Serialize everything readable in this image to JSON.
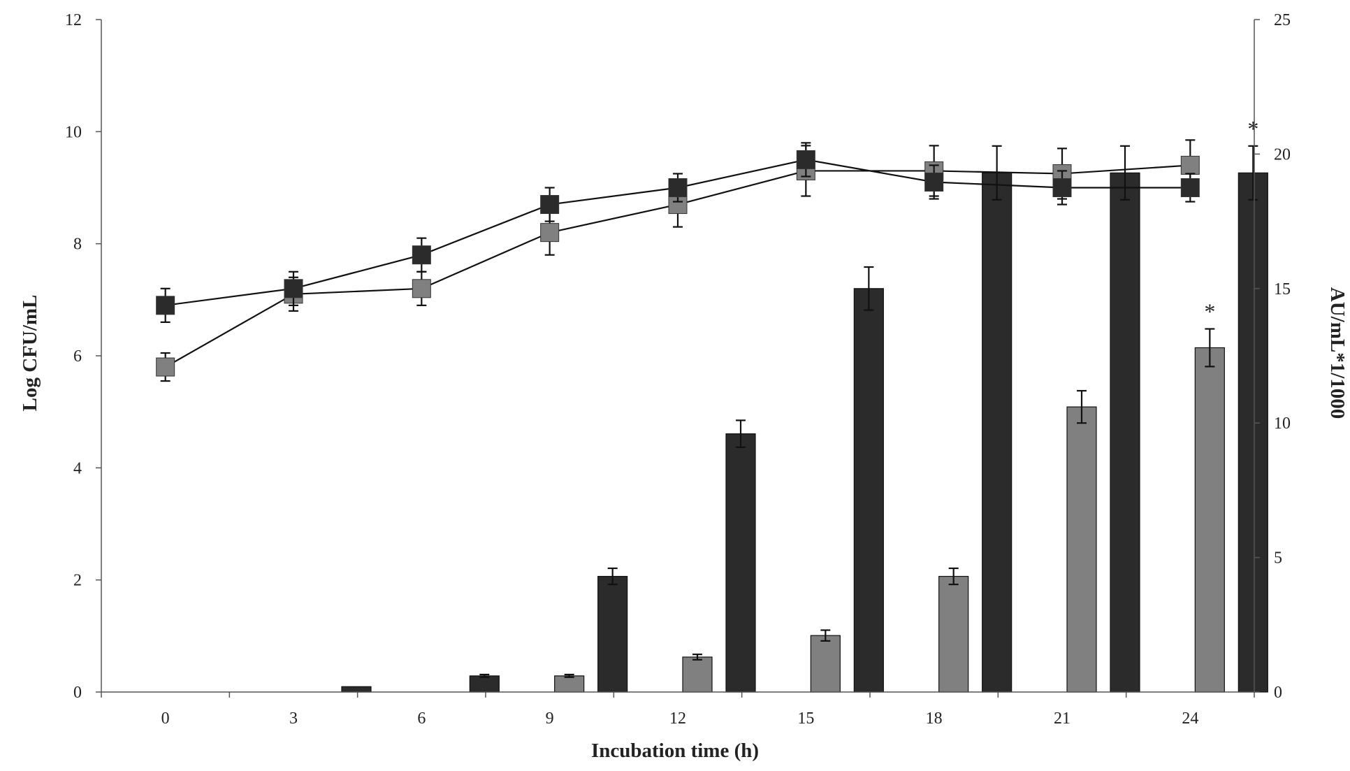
{
  "chart_data": {
    "type": "bar",
    "title": "",
    "xlabel": "Incubation   time (h)",
    "ylabel_left": "Log CFU/mL",
    "ylabel_right": "AU/mL*1/1000",
    "categories": [
      "0",
      "3",
      "6",
      "9",
      "12",
      "15",
      "18",
      "21",
      "24"
    ],
    "ylim_left": [
      0,
      12
    ],
    "yticks_left": [
      "0",
      "2",
      "4",
      "6",
      "8",
      "10",
      "12"
    ],
    "ylim_right": [
      0,
      25
    ],
    "yticks_right": [
      "0",
      "5",
      "10",
      "15",
      "20",
      "25"
    ],
    "grid": false,
    "legend": "none",
    "bar_series": [
      {
        "axis": "right",
        "color": "#808080",
        "values": [
          0,
          0,
          0,
          0.6,
          1.3,
          2.1,
          4.3,
          10.6,
          12.8
        ],
        "errors": [
          0,
          0,
          0,
          0.05,
          0.1,
          0.2,
          0.3,
          0.6,
          0.7
        ]
      },
      {
        "axis": "right",
        "color": "#2b2b2b",
        "values": [
          0,
          0.2,
          0.6,
          4.3,
          9.6,
          15.0,
          19.3,
          19.3,
          19.3
        ],
        "errors": [
          0,
          0,
          0.05,
          0.3,
          0.5,
          0.8,
          1.0,
          1.0,
          1.0
        ]
      }
    ],
    "line_series": [
      {
        "axis": "left",
        "color": "#808080",
        "values": [
          5.8,
          7.1,
          7.2,
          8.2,
          8.7,
          9.3,
          9.3,
          9.25,
          9.4
        ],
        "errors": [
          0.25,
          0.3,
          0.3,
          0.4,
          0.4,
          0.45,
          0.45,
          0.45,
          0.45
        ]
      },
      {
        "axis": "left",
        "color": "#2b2b2b",
        "values": [
          6.9,
          7.2,
          7.8,
          8.7,
          9.0,
          9.5,
          9.1,
          9.0,
          9.0
        ],
        "errors": [
          0.3,
          0.3,
          0.3,
          0.3,
          0.25,
          0.3,
          0.3,
          0.3,
          0.25
        ]
      }
    ],
    "annotations": [
      {
        "text": "*",
        "category": "24",
        "series": 0
      },
      {
        "text": "*",
        "category": "24",
        "series": 1
      }
    ]
  }
}
